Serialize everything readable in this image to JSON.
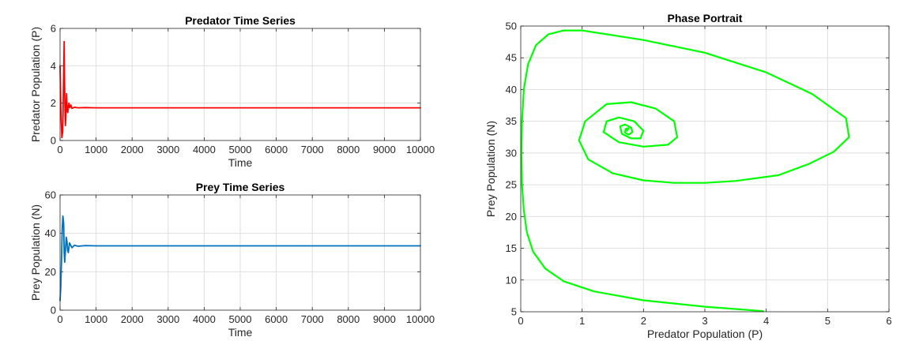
{
  "chart_data": [
    {
      "id": "predator",
      "type": "line",
      "title": "Predator Time Series",
      "xlabel": "Time",
      "ylabel": "Predator Population (P)",
      "xlim": [
        0,
        10000
      ],
      "ylim": [
        0,
        6
      ],
      "xticks": [
        0,
        1000,
        2000,
        3000,
        4000,
        5000,
        6000,
        7000,
        8000,
        9000,
        10000
      ],
      "yticks": [
        0,
        2,
        4,
        6
      ],
      "grid": true,
      "series": [
        {
          "color": "#ff0000",
          "x": [
            0,
            25,
            50,
            75,
            100,
            115,
            125,
            140,
            150,
            165,
            180,
            190,
            200,
            215,
            230,
            250,
            270,
            300,
            330,
            400,
            500,
            700,
            1000,
            10000
          ],
          "y": [
            4.0,
            1.5,
            0.15,
            0.5,
            3.6,
            5.3,
            3.2,
            1.3,
            0.8,
            1.4,
            2.5,
            2.0,
            1.6,
            1.5,
            1.85,
            2.0,
            1.75,
            1.9,
            1.72,
            1.78,
            1.75,
            1.76,
            1.75,
            1.75
          ]
        }
      ]
    },
    {
      "id": "prey",
      "type": "line",
      "title": "Prey Time Series",
      "xlabel": "Time",
      "ylabel": "Prey Population (N)",
      "xlim": [
        0,
        10000
      ],
      "ylim": [
        0,
        60
      ],
      "xticks": [
        0,
        1000,
        2000,
        3000,
        4000,
        5000,
        6000,
        7000,
        8000,
        9000,
        10000
      ],
      "yticks": [
        0,
        20,
        40,
        60
      ],
      "grid": true,
      "series": [
        {
          "color": "#0072bd",
          "x": [
            0,
            20,
            40,
            60,
            80,
            100,
            115,
            130,
            150,
            170,
            190,
            210,
            230,
            260,
            290,
            330,
            400,
            500,
            700,
            1000,
            10000
          ],
          "y": [
            5,
            12,
            25,
            42,
            49,
            45,
            30,
            25,
            31,
            38,
            36,
            31,
            30,
            35,
            34,
            32.5,
            33.8,
            33.3,
            33.6,
            33.5,
            33.5
          ]
        }
      ]
    },
    {
      "id": "phase",
      "type": "line",
      "title": "Phase Portrait",
      "xlabel": "Predator Population (P)",
      "ylabel": "Prey Population (N)",
      "xlim": [
        0,
        6
      ],
      "ylim": [
        5,
        50
      ],
      "xticks": [
        0,
        1,
        2,
        3,
        4,
        5,
        6
      ],
      "yticks": [
        5,
        10,
        15,
        20,
        25,
        30,
        35,
        40,
        45,
        50
      ],
      "grid": true,
      "series": [
        {
          "color": "#00ff00",
          "x": [
            3.95,
            3.0,
            2.0,
            1.2,
            0.7,
            0.4,
            0.2,
            0.1,
            0.05,
            0.02,
            0.01,
            0.02,
            0.05,
            0.12,
            0.25,
            0.45,
            0.7,
            1.0,
            2.0,
            3.0,
            4.0,
            4.75,
            5.3,
            5.35,
            5.1,
            4.7,
            4.2,
            3.5,
            3.0,
            2.5,
            2.0,
            1.5,
            1.1,
            0.95,
            1.05,
            1.4,
            1.8,
            2.2,
            2.5,
            2.55,
            2.4,
            2.0,
            1.6,
            1.35,
            1.4,
            1.6,
            1.85,
            2.0,
            1.95,
            1.8,
            1.65,
            1.62,
            1.7,
            1.8,
            1.82,
            1.76,
            1.7,
            1.71,
            1.76,
            1.73
          ],
          "y": [
            5.1,
            5.8,
            6.8,
            8.2,
            9.8,
            11.8,
            14.5,
            17.5,
            21,
            25,
            30,
            35,
            40,
            44,
            47,
            48.7,
            49.3,
            49.3,
            47.8,
            45.8,
            42.7,
            39.3,
            35.5,
            32.5,
            30.2,
            28.3,
            26.5,
            25.6,
            25.3,
            25.3,
            25.7,
            26.8,
            29,
            32,
            35,
            37.7,
            38,
            37,
            35,
            32.5,
            31.3,
            31,
            31.7,
            33.3,
            35,
            35.6,
            35,
            33.5,
            32.3,
            32.3,
            33,
            34.2,
            34.5,
            34,
            33.3,
            32.9,
            33.2,
            33.8,
            33.9,
            33.5
          ]
        }
      ]
    }
  ]
}
